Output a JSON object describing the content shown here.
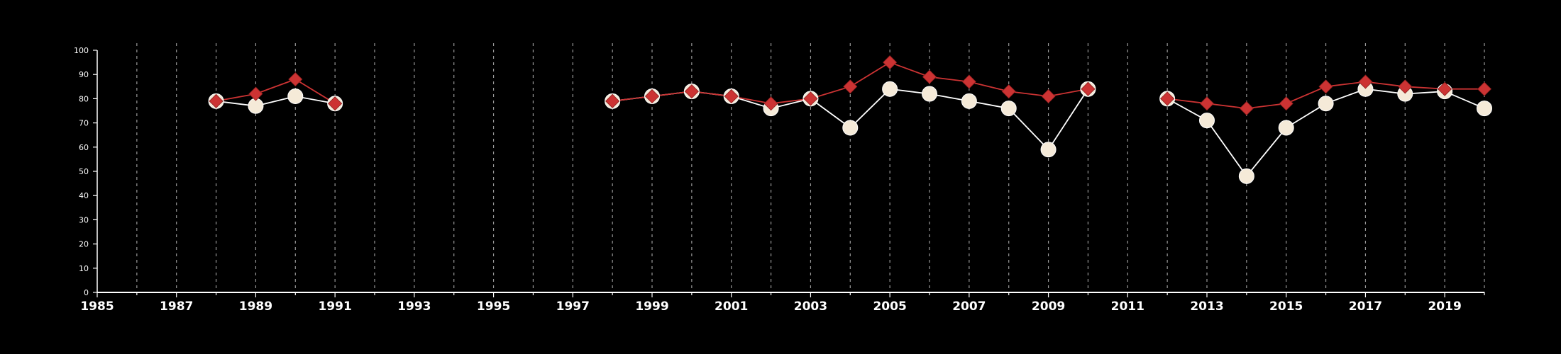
{
  "chart_data": {
    "type": "line",
    "title": "",
    "xlabel": "",
    "ylabel": "",
    "xlim": [
      1985,
      2020
    ],
    "ylim": [
      0,
      100
    ],
    "y_ticks": [
      0,
      10,
      20,
      30,
      40,
      50,
      60,
      70,
      80,
      90,
      100
    ],
    "x_ticks": [
      1985,
      1987,
      1989,
      1991,
      1993,
      1995,
      1997,
      1999,
      2001,
      2003,
      2005,
      2007,
      2009,
      2011,
      2013,
      2015,
      2017,
      2019
    ],
    "vertical_grid": "dashed, every year",
    "legend": "none",
    "background": "#000000",
    "series": [
      {
        "color": "#f5ead8",
        "line_color": "#ffffff",
        "marker": "circle",
        "segments": [
          {
            "x": [
              1988,
              1989,
              1990,
              1991
            ],
            "y": [
              79,
              77,
              81,
              78
            ]
          },
          {
            "x": [
              1998,
              1999,
              2000,
              2001,
              2002,
              2003,
              2004,
              2005,
              2006,
              2007,
              2008,
              2009,
              2010
            ],
            "y": [
              79,
              81,
              83,
              81,
              76,
              80,
              68,
              84,
              82,
              79,
              76,
              59,
              84
            ]
          },
          {
            "x": [
              2012,
              2013,
              2014,
              2015,
              2016,
              2017,
              2018,
              2019,
              2020
            ],
            "y": [
              80,
              71,
              48,
              68,
              78,
              84,
              82,
              83,
              76
            ]
          }
        ]
      },
      {
        "color": "#cc3333",
        "line_color": "#cc3333",
        "marker": "diamond",
        "segments": [
          {
            "x": [
              1988,
              1989,
              1990,
              1991
            ],
            "y": [
              79,
              82,
              88,
              78
            ]
          },
          {
            "x": [
              1998,
              1999,
              2000,
              2001,
              2002,
              2003,
              2004,
              2005,
              2006,
              2007,
              2008,
              2009,
              2010
            ],
            "y": [
              79,
              81,
              83,
              81,
              78,
              80,
              85,
              95,
              89,
              87,
              83,
              81,
              84
            ]
          },
          {
            "x": [
              2012,
              2013,
              2014,
              2015,
              2016,
              2017,
              2018,
              2019,
              2020
            ],
            "y": [
              80,
              78,
              76,
              78,
              85,
              87,
              85,
              84,
              84
            ]
          }
        ]
      }
    ]
  }
}
